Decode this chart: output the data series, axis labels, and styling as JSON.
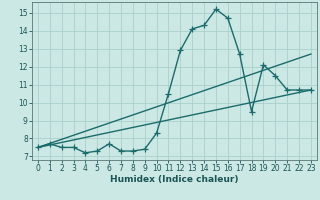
{
  "xlabel": "Humidex (Indice chaleur)",
  "background_color": "#cce8e4",
  "grid_color": "#aacfcc",
  "line_color": "#1a6b6b",
  "xlim": [
    -0.5,
    23.5
  ],
  "ylim": [
    6.8,
    15.6
  ],
  "yticks": [
    7,
    8,
    9,
    10,
    11,
    12,
    13,
    14,
    15
  ],
  "xticks": [
    0,
    1,
    2,
    3,
    4,
    5,
    6,
    7,
    8,
    9,
    10,
    11,
    12,
    13,
    14,
    15,
    16,
    17,
    18,
    19,
    20,
    21,
    22,
    23
  ],
  "series1_x": [
    0,
    1,
    2,
    3,
    4,
    5,
    6,
    7,
    8,
    9,
    10,
    11,
    12,
    13,
    14,
    15,
    16,
    17,
    18,
    19,
    20,
    21,
    22,
    23
  ],
  "series1_y": [
    7.5,
    7.7,
    7.5,
    7.5,
    7.2,
    7.3,
    7.7,
    7.3,
    7.3,
    7.4,
    8.3,
    10.5,
    12.9,
    14.1,
    14.3,
    15.2,
    14.7,
    12.7,
    9.5,
    12.1,
    11.5,
    10.7,
    10.7,
    10.7
  ],
  "series2_x": [
    0,
    23
  ],
  "series2_y": [
    7.5,
    10.7
  ],
  "series3_x": [
    0,
    23
  ],
  "series3_y": [
    7.5,
    12.7
  ],
  "lw": 1.0
}
